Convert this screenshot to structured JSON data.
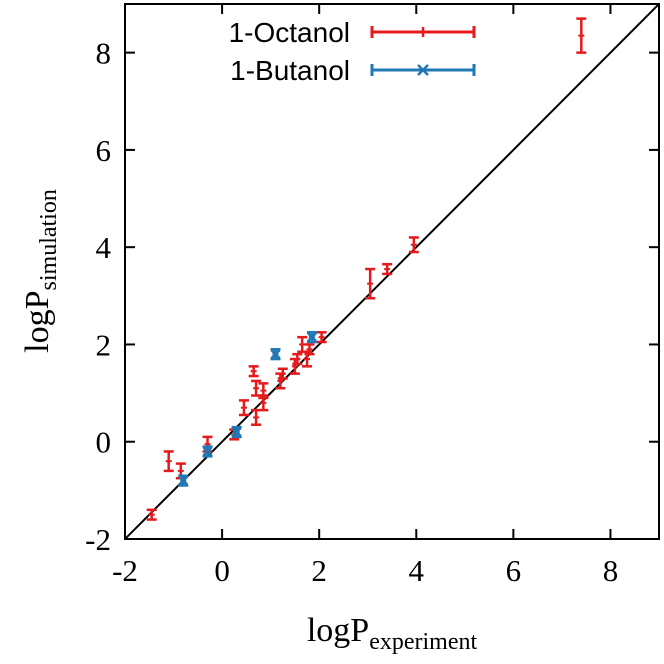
{
  "chart_data": {
    "type": "scatter",
    "xlabel": {
      "main": "logP",
      "sub": "experiment"
    },
    "ylabel": {
      "main": "logP",
      "sub": "simulation"
    },
    "xlim": [
      -2,
      9
    ],
    "ylim": [
      -2,
      9
    ],
    "xticks": [
      "-2",
      "0",
      "2",
      "4",
      "6",
      "8"
    ],
    "yticks": [
      "-2",
      "0",
      "2",
      "4",
      "6",
      "8"
    ],
    "reference_line": "y = x",
    "grid": false,
    "legend_position": "top-left",
    "series": [
      {
        "name": "1-Octanol",
        "color": "#e41a1c",
        "marker": "errorbar",
        "points": [
          {
            "x": -1.45,
            "y": -1.5,
            "err": 0.1
          },
          {
            "x": -1.1,
            "y": -0.4,
            "err": 0.2
          },
          {
            "x": -0.85,
            "y": -0.6,
            "err": 0.15
          },
          {
            "x": -0.3,
            "y": -0.05,
            "err": 0.15
          },
          {
            "x": 0.25,
            "y": 0.15,
            "err": 0.1
          },
          {
            "x": 0.45,
            "y": 0.7,
            "err": 0.15
          },
          {
            "x": 0.65,
            "y": 1.45,
            "err": 0.1
          },
          {
            "x": 0.7,
            "y": 1.1,
            "err": 0.15
          },
          {
            "x": 0.7,
            "y": 0.5,
            "err": 0.15
          },
          {
            "x": 0.85,
            "y": 0.8,
            "err": 0.15
          },
          {
            "x": 0.85,
            "y": 1.05,
            "err": 0.15
          },
          {
            "x": 1.2,
            "y": 1.25,
            "err": 0.15
          },
          {
            "x": 1.25,
            "y": 1.4,
            "err": 0.1
          },
          {
            "x": 1.5,
            "y": 1.55,
            "err": 0.15
          },
          {
            "x": 1.55,
            "y": 1.7,
            "err": 0.1
          },
          {
            "x": 1.65,
            "y": 2.0,
            "err": 0.15
          },
          {
            "x": 1.75,
            "y": 1.7,
            "err": 0.15
          },
          {
            "x": 1.8,
            "y": 1.9,
            "err": 0.1
          },
          {
            "x": 2.05,
            "y": 2.15,
            "err": 0.1
          },
          {
            "x": 3.05,
            "y": 3.25,
            "err": 0.3
          },
          {
            "x": 3.4,
            "y": 3.55,
            "err": 0.1
          },
          {
            "x": 3.95,
            "y": 4.05,
            "err": 0.15
          },
          {
            "x": 7.4,
            "y": 8.35,
            "err": 0.35
          }
        ]
      },
      {
        "name": "1-Butanol",
        "color": "#1f77b4",
        "marker": "x-errorbar",
        "points": [
          {
            "x": -0.8,
            "y": -0.8,
            "err": 0.1
          },
          {
            "x": -0.3,
            "y": -0.2,
            "err": 0.1
          },
          {
            "x": 0.3,
            "y": 0.2,
            "err": 0.1
          },
          {
            "x": 1.1,
            "y": 1.8,
            "err": 0.1
          },
          {
            "x": 1.85,
            "y": 2.15,
            "err": 0.1
          }
        ]
      }
    ]
  }
}
